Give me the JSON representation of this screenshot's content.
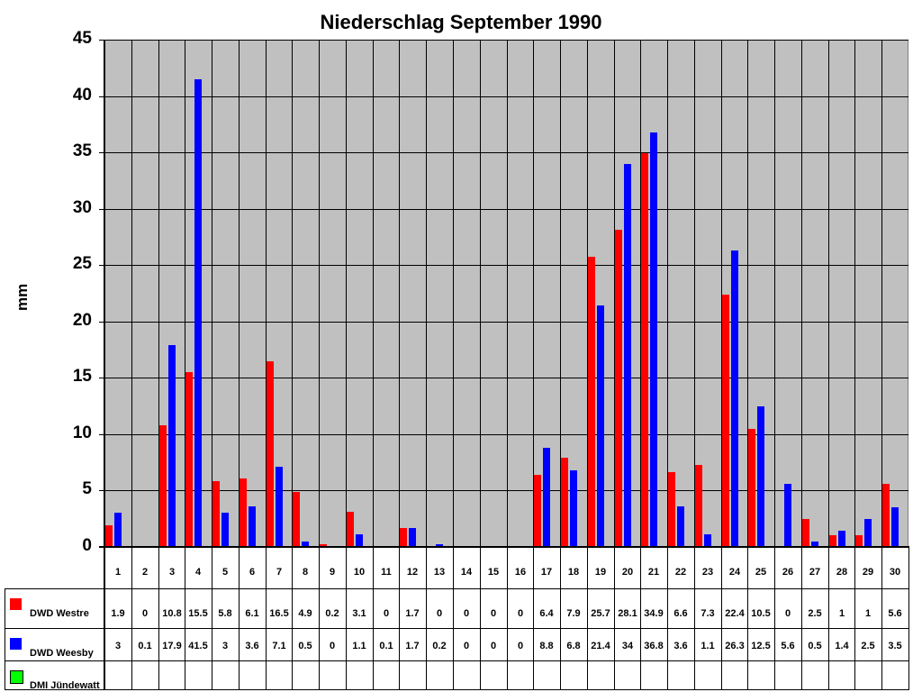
{
  "chart_data": {
    "type": "bar",
    "title": "Niederschlag September 1990",
    "xlabel": "",
    "ylabel": "mm",
    "ylim": [
      0,
      45
    ],
    "yticks": [
      0,
      5,
      10,
      15,
      20,
      25,
      30,
      35,
      40,
      45
    ],
    "grid": true,
    "legend_position": "bottom-left table",
    "categories": [
      "1",
      "2",
      "3",
      "4",
      "5",
      "6",
      "7",
      "8",
      "9",
      "10",
      "11",
      "12",
      "13",
      "14",
      "15",
      "16",
      "17",
      "18",
      "19",
      "20",
      "21",
      "22",
      "23",
      "24",
      "25",
      "26",
      "27",
      "28",
      "29",
      "30"
    ],
    "series": [
      {
        "name": "DWD Westre",
        "color": "#ff0000",
        "values": [
          1.9,
          0,
          10.8,
          15.5,
          5.8,
          6.1,
          16.5,
          4.9,
          0.2,
          3.1,
          0,
          1.7,
          0,
          0,
          0,
          0,
          6.4,
          7.9,
          25.7,
          28.1,
          34.9,
          6.6,
          7.3,
          22.4,
          10.5,
          0,
          2.5,
          1,
          1,
          5.6
        ]
      },
      {
        "name": "DWD Weesby",
        "color": "#0000ff",
        "values": [
          3,
          0.1,
          17.9,
          41.5,
          3,
          3.6,
          7.1,
          0.5,
          0,
          1.1,
          0.1,
          1.7,
          0.2,
          0,
          0,
          0,
          8.8,
          6.8,
          21.4,
          34,
          36.8,
          3.6,
          1.1,
          26.3,
          12.5,
          5.6,
          0.5,
          1.4,
          2.5,
          3.5
        ]
      },
      {
        "name": "DMI Jündewatt",
        "color": "#00ff00",
        "values": [
          null,
          null,
          null,
          null,
          null,
          null,
          null,
          null,
          null,
          null,
          null,
          null,
          null,
          null,
          null,
          null,
          null,
          null,
          null,
          null,
          null,
          null,
          null,
          null,
          null,
          null,
          null,
          null,
          null,
          null
        ]
      }
    ]
  },
  "colors": {
    "plot_bg": "#c0c0c0",
    "grid": "#000000"
  }
}
